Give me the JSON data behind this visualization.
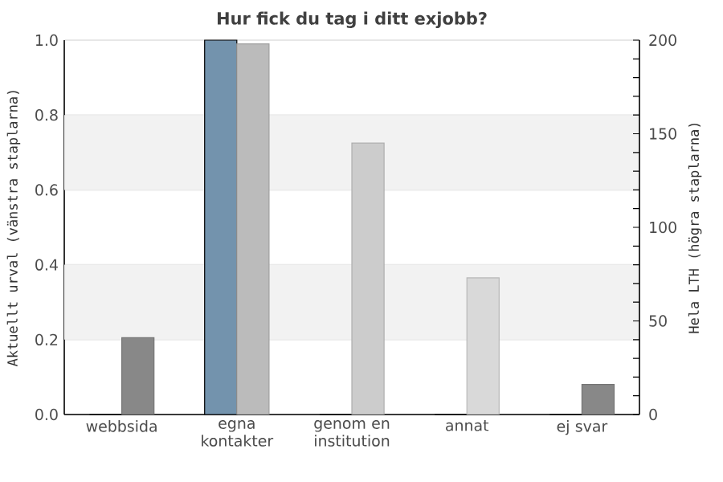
{
  "chart_data": {
    "type": "bar",
    "title": "Hur fick du tag i ditt exjobb?",
    "ylabel": "Aktuellt urval (vänstra staplarna)",
    "y2label": "Hela LTH (högra staplarna)",
    "categories": [
      "webbsida",
      "egna kontakter",
      "genom en institution",
      "annat",
      "ej svar"
    ],
    "series": [
      {
        "values": [
          0,
          1,
          0,
          0,
          0
        ],
        "color": "#7393ad"
      },
      {
        "values": [
          41,
          198,
          145,
          73,
          16
        ],
        "colors": [
          "#888888",
          "#bbbbbb",
          "#cccccc",
          "#d9d9d9",
          "#888888"
        ],
        "axis": "y2"
      }
    ],
    "ylim": [
      0,
      1
    ],
    "yticks": [
      {
        "value": 0,
        "label": "0.0"
      },
      {
        "value": 0.2,
        "label": "0.2"
      },
      {
        "value": 0.4,
        "label": "0.4"
      },
      {
        "value": 0.6,
        "label": "0.6"
      },
      {
        "value": 0.8,
        "label": "0.8"
      },
      {
        "value": 1,
        "label": "1.0"
      }
    ],
    "y2lim": [
      0,
      200
    ],
    "y2ticks": [
      0,
      {
        "value": 10,
        "label": null
      },
      {
        "value": 20,
        "label": null
      },
      {
        "value": 30,
        "label": null
      },
      {
        "value": 40,
        "label": null
      },
      50,
      {
        "value": 60,
        "label": null
      },
      {
        "value": 70,
        "label": null
      },
      {
        "value": 80,
        "label": null
      },
      {
        "value": 90,
        "label": null
      },
      100,
      {
        "value": 110,
        "label": null
      },
      {
        "value": 120,
        "label": null
      },
      {
        "value": 130,
        "label": null
      },
      {
        "value": 140,
        "label": null
      },
      150,
      {
        "value": 160,
        "label": null
      },
      {
        "value": 170,
        "label": null
      },
      {
        "value": 180,
        "label": null
      },
      {
        "value": 190,
        "label": null
      },
      200
    ],
    "bands": [
      {
        "axis": "y",
        "from": 0.2,
        "to": 0.4,
        "color": "#f2f2f2"
      },
      {
        "axis": "y",
        "from": 0.6,
        "to": 0.8,
        "color": "#f2f2f2"
      }
    ],
    "grid": "y"
  }
}
